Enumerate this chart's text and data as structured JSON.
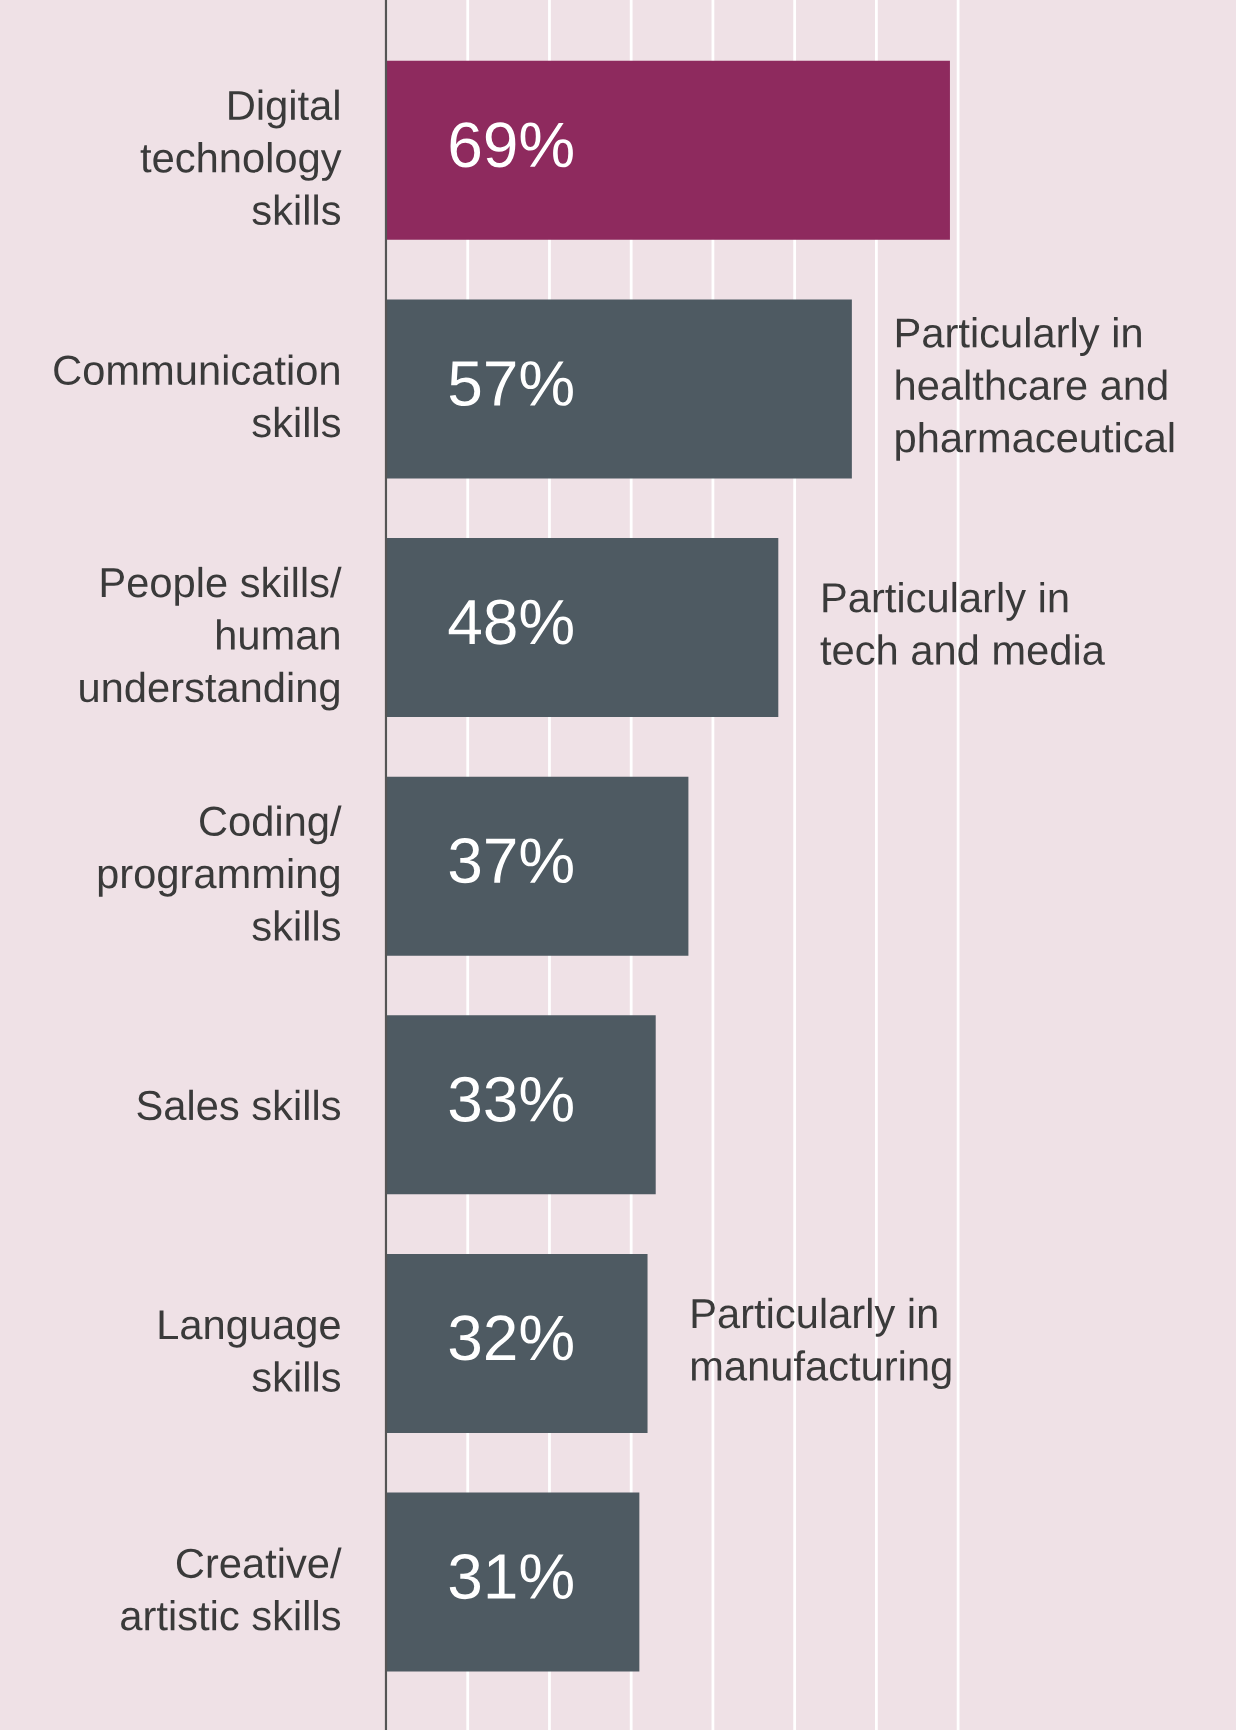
{
  "chart_data": {
    "type": "bar",
    "orientation": "horizontal",
    "categories": [
      "Digital\ntechnology\nskills",
      "Communication\nskills",
      "People skills/\nhuman\nunderstanding",
      "Coding/\nprogramming\nskills",
      "Sales skills",
      "Language\nskills",
      "Creative/\nartistic skills"
    ],
    "values": [
      69,
      57,
      48,
      37,
      33,
      32,
      31
    ],
    "value_labels": [
      "69%",
      "57%",
      "48%",
      "37%",
      "33%",
      "32%",
      "31%"
    ],
    "colors": [
      "#8e2a5e",
      "#4e5a62",
      "#4e5a62",
      "#4e5a62",
      "#4e5a62",
      "#4e5a62",
      "#4e5a62"
    ],
    "xlim": [
      0,
      104
    ],
    "xticks": [
      {
        "value": 0,
        "label": null
      },
      {
        "value": 10,
        "label": null
      },
      {
        "value": 20,
        "label": null
      },
      {
        "value": 30,
        "label": null
      },
      {
        "value": 40,
        "label": null
      },
      {
        "value": 50,
        "label": null
      },
      {
        "value": 60,
        "label": null
      },
      {
        "value": 70,
        "label": null
      }
    ],
    "grid": "x",
    "tick_labels": "y",
    "annotations": [
      {
        "text": "Particularly in\nhealthcare and\npharmaceutical",
        "x": 57,
        "y": "Communication\nskills"
      },
      {
        "text": "Particularly in\ntech and media",
        "x": 48,
        "y": "People skills/\nhuman\nunderstanding"
      },
      {
        "text": "Particularly in\nmanufacturing",
        "x": 32,
        "y": "Language\nskills"
      }
    ]
  }
}
